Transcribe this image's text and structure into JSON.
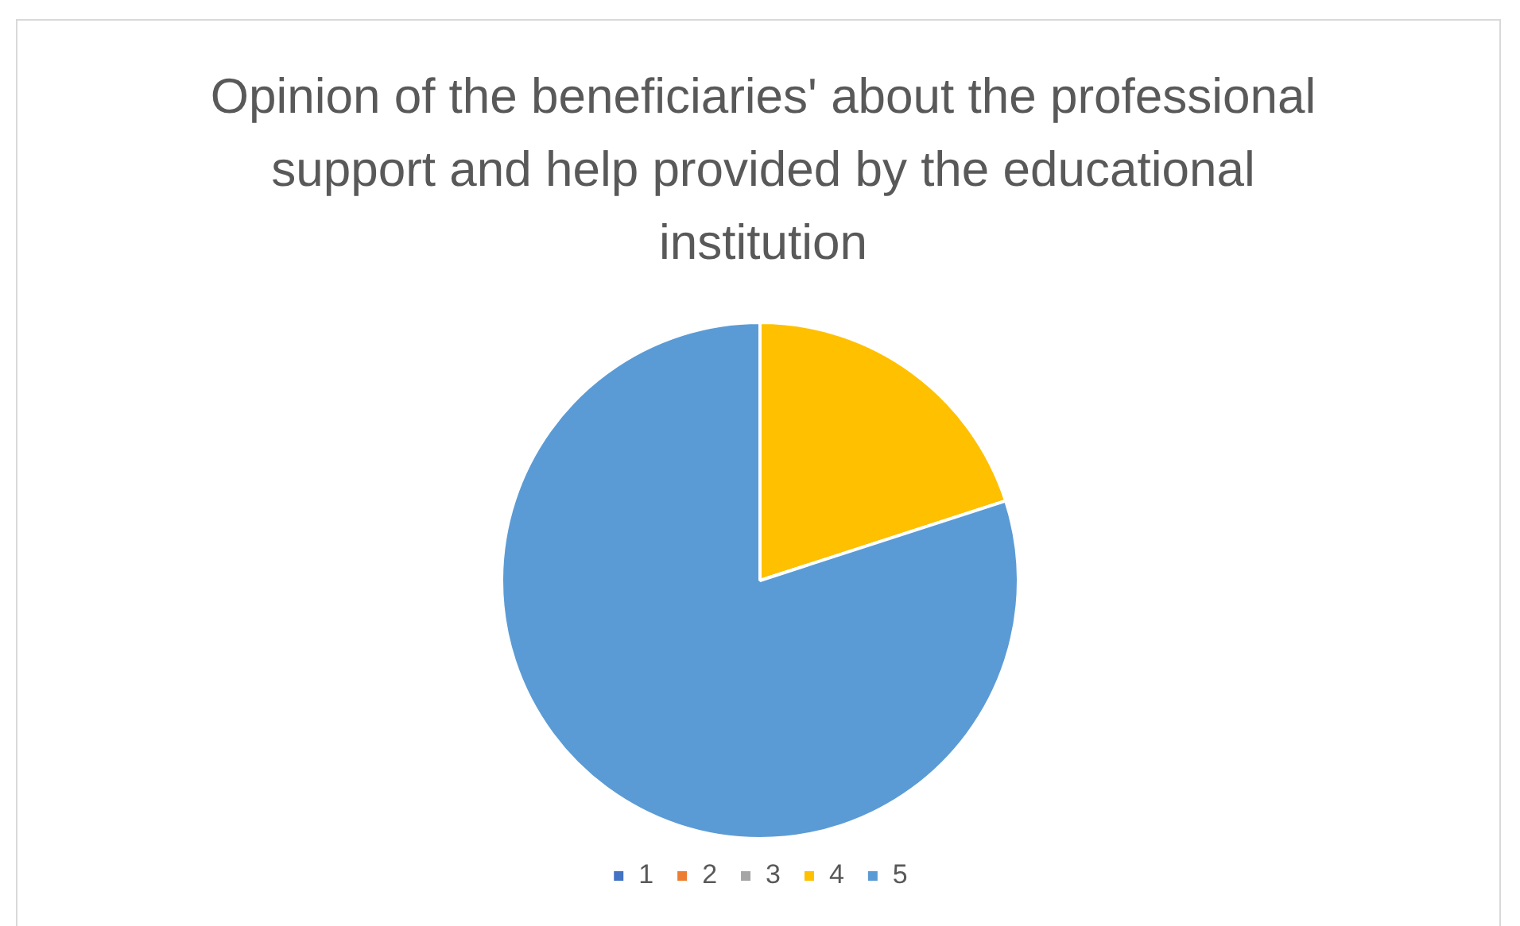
{
  "chart_data": {
    "type": "pie",
    "title": "Opinion of the beneficiaries' about the professional support and help provided by the educational institution",
    "categories": [
      "1",
      "2",
      "3",
      "4",
      "5"
    ],
    "values": [
      0,
      0,
      0,
      20,
      80
    ],
    "colors": [
      "#4472c4",
      "#ed7d31",
      "#a5a5a5",
      "#ffc000",
      "#5b9bd5"
    ],
    "legend": "bottom"
  }
}
